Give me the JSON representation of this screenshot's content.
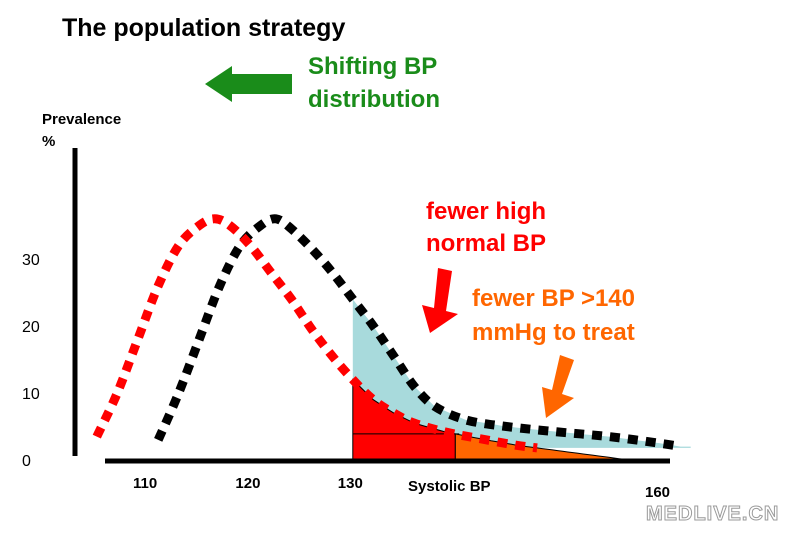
{
  "chart_data": {
    "type": "line",
    "title": "The population strategy",
    "ylabel_line1": "Prevalence",
    "ylabel_line2": "%",
    "xlabel": "Systolic BP",
    "y_ticks": [
      "30",
      "20",
      "10",
      "0"
    ],
    "y_tick_values": [
      30,
      20,
      10,
      0
    ],
    "x_ticks": [
      "110",
      "120",
      "130",
      "160"
    ],
    "x_tick_values": [
      110,
      120,
      130,
      160
    ],
    "xlim": [
      106,
      163
    ],
    "ylim": [
      0,
      38
    ],
    "series": [
      {
        "color": "#000000",
        "style": "dotted",
        "points": [
          [
            111,
            3
          ],
          [
            113,
            10
          ],
          [
            115,
            18
          ],
          [
            117,
            26
          ],
          [
            119,
            32
          ],
          [
            121,
            35
          ],
          [
            122.5,
            36
          ],
          [
            124,
            34.5
          ],
          [
            126,
            31.5
          ],
          [
            128,
            28
          ],
          [
            130,
            24
          ],
          [
            132,
            20
          ],
          [
            134,
            15.5
          ],
          [
            136,
            11
          ],
          [
            138,
            8
          ],
          [
            141,
            6
          ],
          [
            145,
            5
          ],
          [
            150,
            4.2
          ],
          [
            155,
            3.5
          ],
          [
            160,
            2.5
          ],
          [
            162,
            2
          ]
        ]
      },
      {
        "color": "#ff0000",
        "style": "dotted",
        "points": [
          [
            105,
            3.5
          ],
          [
            107,
            10
          ],
          [
            109,
            18
          ],
          [
            111,
            26
          ],
          [
            113,
            32
          ],
          [
            115,
            35
          ],
          [
            116.5,
            36
          ],
          [
            118,
            35
          ],
          [
            120,
            32
          ],
          [
            122,
            28
          ],
          [
            124,
            24
          ],
          [
            126,
            19.5
          ],
          [
            128,
            15.5
          ],
          [
            130,
            12
          ],
          [
            132,
            9
          ],
          [
            134,
            7
          ],
          [
            136,
            5.5
          ],
          [
            139,
            4.2
          ],
          [
            142,
            3.3
          ],
          [
            146,
            2.2
          ],
          [
            148,
            1.8
          ]
        ]
      }
    ],
    "shaded_regions": [
      {
        "label": "shift-area",
        "color": "#a8dadc",
        "x_from": 130,
        "x_to": 163
      },
      {
        "label": "high-normal-area",
        "color": "#ff0000",
        "x_from": 130,
        "x_to": 140
      },
      {
        "label": "over-140-area",
        "color": "#ff6600",
        "x_from": 140,
        "x_to": 157
      }
    ],
    "annotations": [
      {
        "line1": "Shifting BP",
        "line2": "distribution",
        "color": "#1a8c1a"
      },
      {
        "line1": "fewer high",
        "line2": "normal BP",
        "color": "#ff0000"
      },
      {
        "line1": "fewer BP >140",
        "line2": "mmHg to treat",
        "color": "#ff6600"
      }
    ],
    "arrow_colors": {
      "shift": "#1a8c1a",
      "high_normal": "#ff0000",
      "treat": "#ff6600"
    }
  },
  "watermark": "MEDLIVE.CN"
}
